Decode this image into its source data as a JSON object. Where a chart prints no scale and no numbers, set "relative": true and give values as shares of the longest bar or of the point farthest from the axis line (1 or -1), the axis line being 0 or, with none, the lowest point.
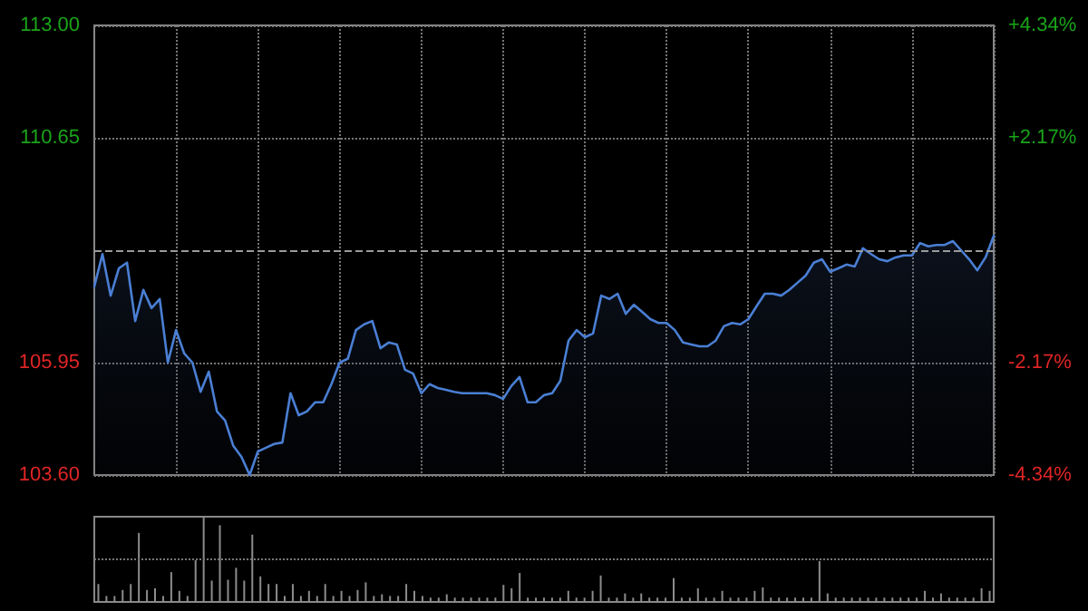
{
  "chart_data": [
    {
      "type": "area",
      "categories": [
        null,
        null,
        null,
        null,
        null,
        null,
        null,
        null,
        null,
        null,
        null,
        null,
        null,
        null,
        null,
        null,
        null,
        null,
        null,
        null,
        null,
        null,
        null,
        null,
        null,
        null,
        null,
        null,
        null,
        null,
        null,
        null,
        null,
        null,
        null,
        null,
        null,
        null,
        null,
        null,
        null,
        null,
        null,
        null,
        null,
        null,
        null,
        null,
        null,
        null,
        null,
        null,
        null,
        null,
        null,
        null,
        null,
        null,
        null,
        null,
        null,
        null,
        null,
        null,
        null,
        null,
        null,
        null,
        null,
        null,
        null,
        null,
        null,
        null,
        null,
        null,
        null,
        null,
        null,
        null,
        null,
        null,
        null,
        null,
        null,
        null,
        null,
        null,
        null,
        null,
        null,
        null,
        null,
        null,
        null,
        null,
        null,
        null,
        null,
        null,
        null,
        null,
        null,
        null,
        null,
        null,
        null,
        null,
        null,
        null,
        null
      ],
      "series": [
        {
          "color": "#4a7fd4",
          "values": [
            107.54,
            108.22,
            107.35,
            107.92,
            108.04,
            106.82,
            107.47,
            107.09,
            107.28,
            105.95,
            106.63,
            106.14,
            105.95,
            105.34,
            105.76,
            104.93,
            104.74,
            104.21,
            103.98,
            103.6,
            104.09,
            104.17,
            104.25,
            104.28,
            105.31,
            104.85,
            104.93,
            105.12,
            105.12,
            105.5,
            105.95,
            106.03,
            106.63,
            106.75,
            106.82,
            106.25,
            106.37,
            106.33,
            105.8,
            105.72,
            105.31,
            105.5,
            105.42,
            105.38,
            105.34,
            105.31,
            105.31,
            105.31,
            105.31,
            105.27,
            105.19,
            105.46,
            105.65,
            105.12,
            105.12,
            105.27,
            105.31,
            105.57,
            106.41,
            106.63,
            106.48,
            106.56,
            107.35,
            107.28,
            107.39,
            106.97,
            107.16,
            107.01,
            106.86,
            106.78,
            106.78,
            106.63,
            106.37,
            106.33,
            106.29,
            106.29,
            106.41,
            106.71,
            106.78,
            106.75,
            106.86,
            107.13,
            107.39,
            107.39,
            107.35,
            107.47,
            107.62,
            107.77,
            108.04,
            108.11,
            107.85,
            107.92,
            108.0,
            107.96,
            108.34,
            108.22,
            108.11,
            108.07,
            108.15,
            108.19,
            108.19,
            108.45,
            108.38,
            108.41,
            108.41,
            108.49,
            108.3,
            108.11,
            107.88,
            108.15,
            108.6
          ]
        }
      ],
      "ylim": [
        103.6,
        113
      ],
      "yticks": [
        {
          "value": 103.6,
          "label": "103.60"
        },
        {
          "value": 105.95,
          "label": "105.95"
        },
        {
          "value": 110.65,
          "label": "110.65"
        },
        {
          "value": 113,
          "label": "113.00"
        }
      ],
      "y2lim": [
        -4.34,
        4.34
      ],
      "y2ticks": [
        {
          "value": -4.34,
          "label": "-4.34%"
        },
        {
          "value": -2.17,
          "label": "-2.17%"
        },
        {
          "value": 2.17,
          "label": "+2.17%"
        },
        {
          "value": 4.34,
          "label": "+4.34%"
        }
      ],
      "ref_lines": [
        {
          "axis": "y",
          "value": 108.3,
          "color": "#9a9a9a",
          "line_style": "dashed"
        }
      ],
      "grid": true,
      "line_style": "solid",
      "tick_labels": "y"
    },
    {
      "type": "bar",
      "relative": true,
      "tick_labels": false,
      "ref_lines": [
        {
          "axis": "y",
          "value": 0.5,
          "color": "#777777",
          "line_style": "dotted"
        }
      ],
      "categories": [
        null,
        null,
        null,
        null,
        null,
        null,
        null,
        null,
        null,
        null,
        null,
        null,
        null,
        null,
        null,
        null,
        null,
        null,
        null,
        null,
        null,
        null,
        null,
        null,
        null,
        null,
        null,
        null,
        null,
        null,
        null,
        null,
        null,
        null,
        null,
        null,
        null,
        null,
        null,
        null,
        null,
        null,
        null,
        null,
        null,
        null,
        null,
        null,
        null,
        null,
        null,
        null,
        null,
        null,
        null,
        null,
        null,
        null,
        null,
        null,
        null,
        null,
        null,
        null,
        null,
        null,
        null,
        null,
        null,
        null,
        null,
        null,
        null,
        null,
        null,
        null,
        null,
        null,
        null,
        null,
        null,
        null,
        null,
        null,
        null,
        null,
        null,
        null,
        null,
        null,
        null,
        null,
        null,
        null,
        null,
        null,
        null,
        null,
        null,
        null,
        null,
        null,
        null,
        null,
        null,
        null,
        null,
        null,
        null,
        null,
        null
      ],
      "series": [
        {
          "color": "#8c8c8c",
          "values": [
            0.21,
            0.07,
            0.07,
            0.14,
            0.21,
            0.81,
            0.14,
            0.16,
            0.07,
            0.35,
            0.13,
            0.07,
            0.49,
            1.0,
            0.25,
            0.9,
            0.26,
            0.4,
            0.25,
            0.79,
            0.3,
            0.21,
            0.21,
            0.07,
            0.21,
            0.07,
            0.13,
            0.07,
            0.21,
            0.07,
            0.13,
            0.07,
            0.14,
            0.23,
            0.07,
            0.09,
            0.07,
            0.07,
            0.21,
            0.13,
            0.07,
            0.05,
            0.05,
            0.09,
            0.05,
            0.05,
            0.05,
            0.05,
            0.05,
            0.05,
            0.2,
            0.16,
            0.34,
            0.05,
            0.05,
            0.05,
            0.05,
            0.05,
            0.13,
            0.05,
            0.05,
            0.13,
            0.31,
            0.05,
            0.05,
            0.1,
            0.05,
            0.1,
            0.05,
            0.05,
            0.05,
            0.28,
            0.05,
            0.05,
            0.16,
            0.05,
            0.05,
            0.13,
            0.05,
            0.05,
            0.05,
            0.13,
            0.17,
            0.05,
            0.05,
            0.05,
            0.05,
            0.05,
            0.05,
            0.48,
            0.1,
            0.05,
            0.05,
            0.05,
            0.05,
            0.05,
            0.05,
            0.05,
            0.05,
            0.05,
            0.05,
            0.05,
            0.13,
            0.05,
            0.1,
            0.05,
            0.05,
            0.05,
            0.05,
            0.16,
            0.13
          ]
        }
      ]
    }
  ]
}
